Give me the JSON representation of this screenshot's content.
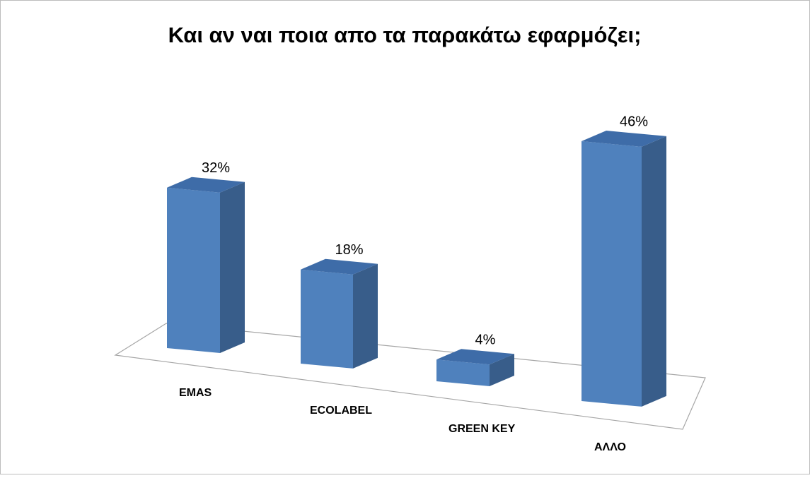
{
  "chart_data": {
    "type": "bar3d",
    "title": "Και αν ναι ποια απο τα παρακάτω εφαρμόζει;",
    "categories": [
      "EMAS",
      "ECOLABEL",
      "GREEN KEY",
      "ΑΛΛΟ"
    ],
    "values": [
      32,
      18,
      4,
      46
    ],
    "value_labels": [
      "32%",
      "18%",
      "4%",
      "46%"
    ],
    "color": "#4f81bd"
  }
}
